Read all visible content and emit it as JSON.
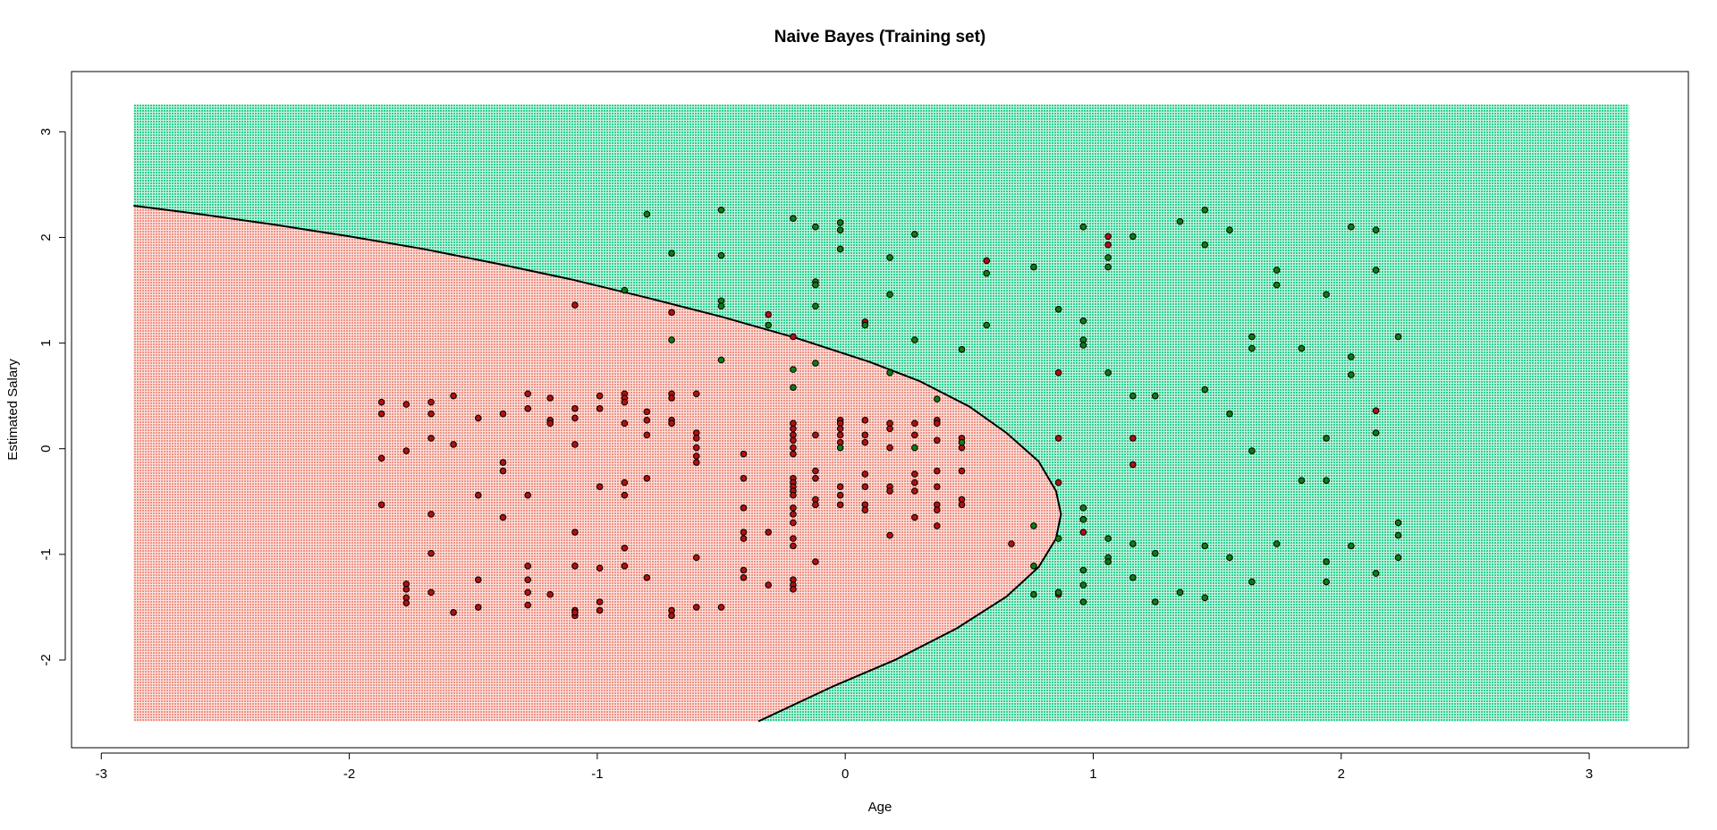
{
  "chart_data": {
    "type": "scatter",
    "title": "Naive Bayes (Training set)",
    "xlabel": "Age",
    "ylabel": "Estimated Salary",
    "xlim": [
      -3.12,
      3.4
    ],
    "ylim": [
      -2.83,
      3.57
    ],
    "x_ticks": [
      -3,
      -2,
      -1,
      0,
      1,
      2,
      3
    ],
    "y_ticks": [
      -2,
      -1,
      0,
      1,
      2,
      3
    ],
    "grid_range": {
      "x": [
        -2.87,
        3.16
      ],
      "y": [
        -2.58,
        3.26
      ]
    },
    "grid": false,
    "legend": "none",
    "colors": {
      "region_0": "#f4a199",
      "region_1": "#4fd8a4",
      "class_0": "#b01010",
      "class_1": "#117a11",
      "boundary": "#000000"
    },
    "decision_boundary": [
      [
        -2.87,
        2.3
      ],
      [
        -2.6,
        2.22
      ],
      [
        -2.3,
        2.12
      ],
      [
        -2.0,
        2.01
      ],
      [
        -1.7,
        1.89
      ],
      [
        -1.4,
        1.75
      ],
      [
        -1.1,
        1.6
      ],
      [
        -0.8,
        1.43
      ],
      [
        -0.5,
        1.25
      ],
      [
        -0.2,
        1.05
      ],
      [
        0.1,
        0.82
      ],
      [
        0.3,
        0.64
      ],
      [
        0.5,
        0.4
      ],
      [
        0.65,
        0.15
      ],
      [
        0.78,
        -0.12
      ],
      [
        0.85,
        -0.4
      ],
      [
        0.87,
        -0.62
      ],
      [
        0.85,
        -0.85
      ],
      [
        0.78,
        -1.12
      ],
      [
        0.65,
        -1.4
      ],
      [
        0.45,
        -1.7
      ],
      [
        0.2,
        -2.0
      ],
      [
        -0.05,
        -2.25
      ],
      [
        -0.35,
        -2.58
      ]
    ],
    "series": [
      {
        "name": "0",
        "points": [
          [
            -1.87,
            0.44
          ],
          [
            -1.87,
            0.33
          ],
          [
            -1.87,
            -0.09
          ],
          [
            -1.87,
            -0.53
          ],
          [
            -1.77,
            0.42
          ],
          [
            -1.77,
            -0.02
          ],
          [
            -1.77,
            -1.28
          ],
          [
            -1.77,
            -1.33
          ],
          [
            -1.77,
            -1.41
          ],
          [
            -1.77,
            -1.46
          ],
          [
            -1.67,
            0.44
          ],
          [
            -1.67,
            0.33
          ],
          [
            -1.67,
            0.1
          ],
          [
            -1.67,
            -0.62
          ],
          [
            -1.67,
            -0.99
          ],
          [
            -1.67,
            -1.36
          ],
          [
            -1.58,
            0.5
          ],
          [
            -1.58,
            0.04
          ],
          [
            -1.58,
            -1.55
          ],
          [
            -1.48,
            0.29
          ],
          [
            -1.48,
            -0.44
          ],
          [
            -1.48,
            -1.24
          ],
          [
            -1.48,
            -1.5
          ],
          [
            -1.38,
            0.33
          ],
          [
            -1.38,
            -0.13
          ],
          [
            -1.38,
            -0.21
          ],
          [
            -1.38,
            -0.65
          ],
          [
            -1.28,
            0.52
          ],
          [
            -1.28,
            0.38
          ],
          [
            -1.28,
            -0.44
          ],
          [
            -1.28,
            -1.11
          ],
          [
            -1.28,
            -1.24
          ],
          [
            -1.28,
            -1.36
          ],
          [
            -1.28,
            -1.48
          ],
          [
            -1.19,
            0.48
          ],
          [
            -1.19,
            0.27
          ],
          [
            -1.19,
            0.24
          ],
          [
            -1.19,
            -1.38
          ],
          [
            -1.09,
            1.36
          ],
          [
            -1.09,
            0.38
          ],
          [
            -1.09,
            0.29
          ],
          [
            -1.09,
            0.04
          ],
          [
            -1.09,
            -0.79
          ],
          [
            -1.09,
            -1.11
          ],
          [
            -1.09,
            -1.53
          ],
          [
            -1.09,
            -1.58
          ],
          [
            -1.09,
            -1.55
          ],
          [
            -0.99,
            0.5
          ],
          [
            -0.99,
            0.38
          ],
          [
            -0.99,
            -0.36
          ],
          [
            -0.99,
            -1.13
          ],
          [
            -0.99,
            -1.45
          ],
          [
            -0.99,
            -1.53
          ],
          [
            -0.89,
            0.52
          ],
          [
            -0.89,
            0.48
          ],
          [
            -0.89,
            0.44
          ],
          [
            -0.89,
            0.24
          ],
          [
            -0.89,
            -0.32
          ],
          [
            -0.89,
            -0.44
          ],
          [
            -0.89,
            -0.94
          ],
          [
            -0.89,
            -1.11
          ],
          [
            -0.8,
            0.35
          ],
          [
            -0.8,
            0.27
          ],
          [
            -0.8,
            0.13
          ],
          [
            -0.8,
            -0.28
          ],
          [
            -0.8,
            -1.22
          ],
          [
            -0.7,
            1.29
          ],
          [
            -0.7,
            0.52
          ],
          [
            -0.7,
            0.48
          ],
          [
            -0.7,
            0.27
          ],
          [
            -0.7,
            0.24
          ],
          [
            -0.7,
            -1.53
          ],
          [
            -0.7,
            -1.58
          ],
          [
            -0.6,
            0.52
          ],
          [
            -0.6,
            0.15
          ],
          [
            -0.6,
            0.1
          ],
          [
            -0.6,
            0.01
          ],
          [
            -0.6,
            -0.07
          ],
          [
            -0.6,
            -0.13
          ],
          [
            -0.6,
            -1.03
          ],
          [
            -0.6,
            -1.5
          ],
          [
            -0.5,
            -1.5
          ],
          [
            -0.41,
            -0.05
          ],
          [
            -0.41,
            -0.28
          ],
          [
            -0.41,
            -0.56
          ],
          [
            -0.41,
            -0.79
          ],
          [
            -0.41,
            -0.85
          ],
          [
            -0.41,
            -1.15
          ],
          [
            -0.41,
            -1.22
          ],
          [
            -0.31,
            1.27
          ],
          [
            -0.31,
            -0.79
          ],
          [
            -0.31,
            -1.29
          ],
          [
            -0.21,
            1.06
          ],
          [
            -0.21,
            0.24
          ],
          [
            -0.21,
            0.19
          ],
          [
            -0.21,
            0.13
          ],
          [
            -0.21,
            0.08
          ],
          [
            -0.21,
            0.01
          ],
          [
            -0.21,
            -0.05
          ],
          [
            -0.21,
            -0.28
          ],
          [
            -0.21,
            -0.32
          ],
          [
            -0.21,
            -0.36
          ],
          [
            -0.21,
            -0.4
          ],
          [
            -0.21,
            -0.44
          ],
          [
            -0.21,
            -0.56
          ],
          [
            -0.21,
            -0.62
          ],
          [
            -0.21,
            -0.7
          ],
          [
            -0.21,
            -0.85
          ],
          [
            -0.21,
            -0.92
          ],
          [
            -0.21,
            -1.24
          ],
          [
            -0.21,
            -1.29
          ],
          [
            -0.21,
            -1.33
          ],
          [
            -0.12,
            0.13
          ],
          [
            -0.12,
            -0.21
          ],
          [
            -0.12,
            -0.28
          ],
          [
            -0.12,
            -0.48
          ],
          [
            -0.12,
            -0.53
          ],
          [
            -0.12,
            -1.07
          ],
          [
            -0.02,
            0.27
          ],
          [
            -0.02,
            0.24
          ],
          [
            -0.02,
            0.19
          ],
          [
            -0.02,
            0.13
          ],
          [
            -0.02,
            0.06
          ],
          [
            -0.02,
            -0.36
          ],
          [
            -0.02,
            -0.44
          ],
          [
            -0.02,
            -0.53
          ],
          [
            0.08,
            1.2
          ],
          [
            0.08,
            0.27
          ],
          [
            0.08,
            0.13
          ],
          [
            0.08,
            0.06
          ],
          [
            0.08,
            -0.24
          ],
          [
            0.08,
            -0.36
          ],
          [
            0.08,
            -0.53
          ],
          [
            0.08,
            -0.58
          ],
          [
            0.18,
            0.24
          ],
          [
            0.18,
            0.19
          ],
          [
            0.18,
            0.01
          ],
          [
            0.18,
            -0.36
          ],
          [
            0.18,
            -0.4
          ],
          [
            0.18,
            -0.82
          ],
          [
            0.28,
            0.24
          ],
          [
            0.28,
            0.13
          ],
          [
            0.28,
            -0.24
          ],
          [
            0.28,
            -0.32
          ],
          [
            0.28,
            -0.4
          ],
          [
            0.28,
            -0.65
          ],
          [
            0.37,
            0.27
          ],
          [
            0.37,
            0.24
          ],
          [
            0.37,
            0.08
          ],
          [
            0.37,
            -0.21
          ],
          [
            0.37,
            -0.36
          ],
          [
            0.37,
            -0.53
          ],
          [
            0.37,
            -0.58
          ],
          [
            0.37,
            -0.73
          ],
          [
            0.47,
            0.1
          ],
          [
            0.47,
            0.01
          ],
          [
            0.47,
            -0.21
          ],
          [
            0.47,
            -0.48
          ],
          [
            0.47,
            -0.53
          ],
          [
            0.57,
            1.78
          ],
          [
            0.67,
            -0.9
          ],
          [
            0.86,
            0.72
          ],
          [
            0.86,
            0.1
          ],
          [
            0.86,
            -0.32
          ],
          [
            0.86,
            -1.36
          ],
          [
            0.86,
            -1.38
          ],
          [
            0.96,
            -0.67
          ],
          [
            0.96,
            -0.79
          ],
          [
            1.06,
            2.01
          ],
          [
            1.06,
            1.93
          ],
          [
            1.16,
            0.1
          ],
          [
            1.16,
            -0.15
          ],
          [
            2.14,
            0.36
          ]
        ]
      },
      {
        "name": "1",
        "points": [
          [
            -0.8,
            2.22
          ],
          [
            -0.7,
            1.85
          ],
          [
            -0.7,
            1.03
          ],
          [
            -0.89,
            1.5
          ],
          [
            -0.5,
            2.26
          ],
          [
            -0.5,
            1.83
          ],
          [
            -0.5,
            1.4
          ],
          [
            -0.5,
            1.35
          ],
          [
            -0.5,
            0.84
          ],
          [
            -0.31,
            1.17
          ],
          [
            -0.21,
            2.18
          ],
          [
            -0.21,
            0.75
          ],
          [
            -0.21,
            0.58
          ],
          [
            -0.12,
            2.1
          ],
          [
            -0.12,
            1.58
          ],
          [
            -0.12,
            1.55
          ],
          [
            -0.12,
            1.35
          ],
          [
            -0.12,
            0.81
          ],
          [
            -0.02,
            2.14
          ],
          [
            -0.02,
            2.07
          ],
          [
            -0.02,
            1.89
          ],
          [
            -0.02,
            0.01
          ],
          [
            0.08,
            1.17
          ],
          [
            0.18,
            1.81
          ],
          [
            0.18,
            1.46
          ],
          [
            0.18,
            0.72
          ],
          [
            0.28,
            2.03
          ],
          [
            0.28,
            1.03
          ],
          [
            0.28,
            0.01
          ],
          [
            0.37,
            0.47
          ],
          [
            0.47,
            0.94
          ],
          [
            0.47,
            0.06
          ],
          [
            0.57,
            1.66
          ],
          [
            0.57,
            1.17
          ],
          [
            0.76,
            1.72
          ],
          [
            0.76,
            -0.73
          ],
          [
            0.76,
            -1.11
          ],
          [
            0.76,
            -1.38
          ],
          [
            0.86,
            1.32
          ],
          [
            0.86,
            -0.85
          ],
          [
            0.86,
            -1.36
          ],
          [
            0.96,
            2.1
          ],
          [
            0.96,
            1.21
          ],
          [
            0.96,
            1.03
          ],
          [
            0.96,
            0.98
          ],
          [
            0.96,
            -0.56
          ],
          [
            0.96,
            -0.67
          ],
          [
            0.96,
            -1.15
          ],
          [
            0.96,
            -1.29
          ],
          [
            0.96,
            -1.45
          ],
          [
            1.06,
            1.81
          ],
          [
            1.06,
            1.72
          ],
          [
            1.06,
            0.72
          ],
          [
            1.06,
            -0.85
          ],
          [
            1.06,
            -1.03
          ],
          [
            1.06,
            -1.07
          ],
          [
            1.16,
            2.01
          ],
          [
            1.16,
            0.5
          ],
          [
            1.16,
            -0.9
          ],
          [
            1.16,
            -1.22
          ],
          [
            1.25,
            0.5
          ],
          [
            1.25,
            -0.99
          ],
          [
            1.25,
            -1.45
          ],
          [
            1.35,
            2.15
          ],
          [
            1.35,
            -1.36
          ],
          [
            1.45,
            2.26
          ],
          [
            1.45,
            1.93
          ],
          [
            1.45,
            0.56
          ],
          [
            1.45,
            -0.92
          ],
          [
            1.45,
            -1.41
          ],
          [
            1.55,
            2.07
          ],
          [
            1.55,
            0.33
          ],
          [
            1.55,
            -1.03
          ],
          [
            1.64,
            1.06
          ],
          [
            1.64,
            0.95
          ],
          [
            1.64,
            -0.02
          ],
          [
            1.64,
            -1.26
          ],
          [
            1.74,
            1.69
          ],
          [
            1.74,
            1.55
          ],
          [
            1.74,
            -0.9
          ],
          [
            1.84,
            0.95
          ],
          [
            1.84,
            -0.3
          ],
          [
            1.94,
            1.46
          ],
          [
            1.94,
            0.1
          ],
          [
            1.94,
            -0.3
          ],
          [
            1.94,
            -1.07
          ],
          [
            1.94,
            -1.26
          ],
          [
            2.04,
            2.1
          ],
          [
            2.04,
            0.87
          ],
          [
            2.04,
            0.7
          ],
          [
            2.04,
            -0.92
          ],
          [
            2.14,
            2.07
          ],
          [
            2.14,
            1.69
          ],
          [
            2.14,
            0.15
          ],
          [
            2.14,
            -1.18
          ],
          [
            2.23,
            1.06
          ],
          [
            2.23,
            -0.7
          ],
          [
            2.23,
            -0.82
          ],
          [
            2.23,
            -1.03
          ]
        ]
      }
    ]
  }
}
